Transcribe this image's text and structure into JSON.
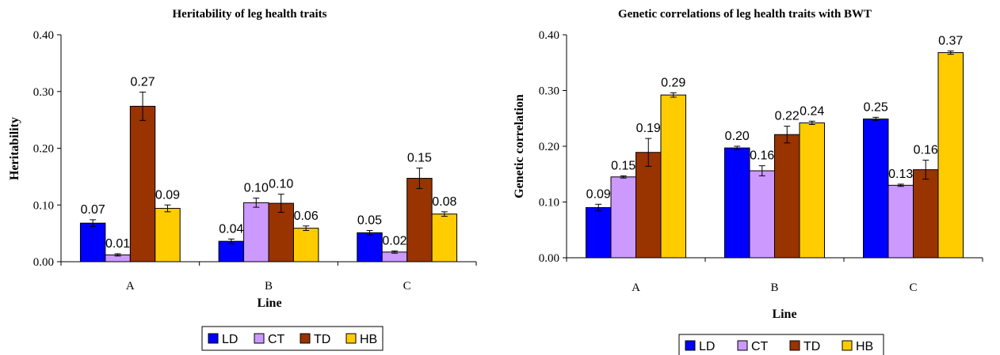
{
  "chart_data": [
    {
      "type": "bar",
      "title": "Heritability of leg health traits",
      "xlabel": "Line",
      "ylabel": "Heritability",
      "ylim": [
        0,
        0.4
      ],
      "yticks": [
        "0.00",
        "0.10",
        "0.20",
        "0.30",
        "0.40"
      ],
      "categories": [
        "A",
        "B",
        "C"
      ],
      "series": [
        {
          "name": "LD",
          "color": "#0000ff",
          "values": [
            0.068,
            0.036,
            0.051
          ],
          "errors": [
            0.006,
            0.004,
            0.004
          ],
          "labels": [
            "0.07",
            "0.04",
            "0.05"
          ]
        },
        {
          "name": "CT",
          "color": "#cc99ff",
          "values": [
            0.012,
            0.104,
            0.017
          ],
          "errors": [
            0.002,
            0.008,
            0.002
          ],
          "labels": [
            "0.01",
            "0.10",
            "0.02"
          ]
        },
        {
          "name": "TD",
          "color": "#993300",
          "values": [
            0.274,
            0.103,
            0.147
          ],
          "errors": [
            0.025,
            0.016,
            0.018
          ],
          "labels": [
            "0.27",
            "0.10",
            "0.15"
          ]
        },
        {
          "name": "HB",
          "color": "#ffcc00",
          "values": [
            0.094,
            0.059,
            0.084
          ],
          "errors": [
            0.006,
            0.004,
            0.004
          ],
          "labels": [
            "0.09",
            "0.06",
            "0.08"
          ]
        }
      ],
      "legend_position": "bottom"
    },
    {
      "type": "bar",
      "title": "Genetic correlations of leg health traits with BWT",
      "xlabel": "Line",
      "ylabel": "Genetic correlation",
      "ylim": [
        0,
        0.4
      ],
      "yticks": [
        "0.00",
        "0.10",
        "0.20",
        "0.30",
        "0.40"
      ],
      "categories": [
        "A",
        "B",
        "C"
      ],
      "series": [
        {
          "name": "LD",
          "color": "#0000ff",
          "values": [
            0.09,
            0.197,
            0.249
          ],
          "errors": [
            0.006,
            0.003,
            0.003
          ],
          "labels": [
            "0.09",
            "0.20",
            "0.25"
          ]
        },
        {
          "name": "CT",
          "color": "#cc99ff",
          "values": [
            0.145,
            0.156,
            0.13
          ],
          "errors": [
            0.002,
            0.009,
            0.002
          ],
          "labels": [
            "0.15",
            "0.16",
            "0.13"
          ]
        },
        {
          "name": "TD",
          "color": "#993300",
          "values": [
            0.189,
            0.221,
            0.158
          ],
          "errors": [
            0.025,
            0.015,
            0.017
          ],
          "labels": [
            "0.19",
            "0.22",
            "0.16"
          ]
        },
        {
          "name": "HB",
          "color": "#ffcc00",
          "values": [
            0.292,
            0.242,
            0.368
          ],
          "errors": [
            0.004,
            0.003,
            0.003
          ],
          "labels": [
            "0.29",
            "0.24",
            "0.37"
          ]
        }
      ],
      "legend_position": "bottom"
    }
  ]
}
